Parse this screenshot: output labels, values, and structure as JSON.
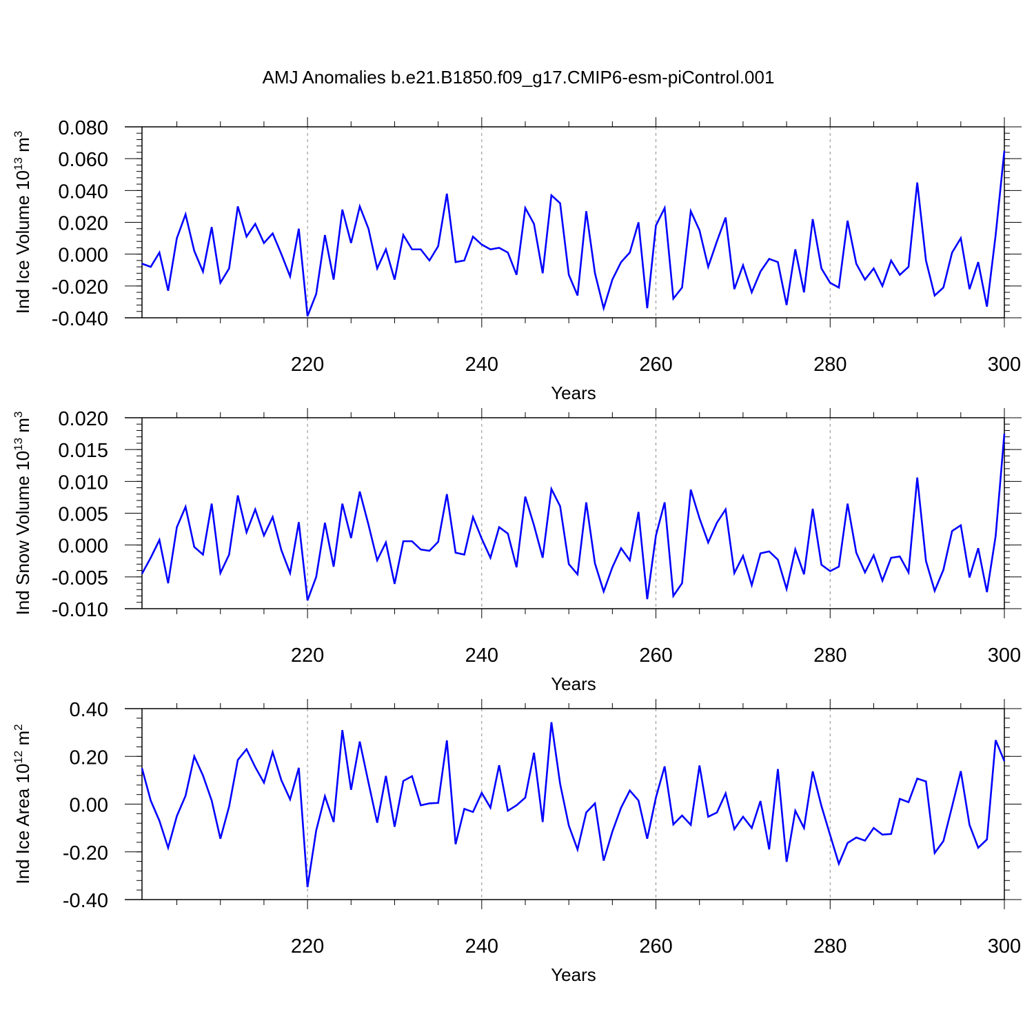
{
  "title": "AMJ Anomalies b.e21.B1850.f09_g17.CMIP6-esm-piControl.001",
  "colors": {
    "series": "#0000ff",
    "axis": "#000000",
    "grid": "#888888"
  },
  "chart_data": [
    {
      "type": "line",
      "ylabel": {
        "text": "Ind Ice Volume 10",
        "sup": "13",
        "unit": " m",
        "unitsup": "3"
      },
      "xlabel": "Years",
      "xlim": [
        201,
        300
      ],
      "ylim": [
        -0.04,
        0.08
      ],
      "ytick_values": [
        -0.04,
        -0.02,
        0.0,
        0.02,
        0.04,
        0.06,
        0.08
      ],
      "ytick_labels": [
        "-0.040",
        "-0.020",
        "0.000",
        "0.020",
        "0.040",
        "0.060",
        "0.080"
      ],
      "xtick_values": [
        220,
        240,
        260,
        280,
        300
      ],
      "xtick_labels": [
        "220",
        "240",
        "260",
        "280",
        "300"
      ],
      "grid_x": [
        220,
        240,
        260,
        280
      ],
      "series": [
        {
          "name": "Ind Ice Volume",
          "x_start": 201,
          "values": [
            -0.006,
            -0.008,
            0.001,
            -0.023,
            0.01,
            0.025,
            0.002,
            -0.011,
            0.017,
            -0.018,
            -0.009,
            0.03,
            0.011,
            0.019,
            0.007,
            0.013,
            0.0,
            -0.014,
            0.016,
            -0.039,
            -0.025,
            0.012,
            -0.016,
            0.028,
            0.007,
            0.03,
            0.016,
            -0.009,
            0.003,
            -0.016,
            0.012,
            0.003,
            0.003,
            -0.004,
            0.005,
            0.038,
            -0.005,
            -0.004,
            0.011,
            0.006,
            0.003,
            0.004,
            0.001,
            -0.013,
            0.029,
            0.019,
            -0.012,
            0.037,
            0.032,
            -0.013,
            -0.026,
            0.027,
            -0.012,
            -0.034,
            -0.016,
            -0.005,
            0.001,
            0.02,
            -0.034,
            0.018,
            0.029,
            -0.028,
            -0.021,
            0.027,
            0.015,
            -0.008,
            0.008,
            0.023,
            -0.022,
            -0.007,
            -0.024,
            -0.011,
            -0.003,
            -0.005,
            -0.032,
            0.003,
            -0.024,
            0.022,
            -0.009,
            -0.018,
            -0.021,
            0.021,
            -0.006,
            -0.016,
            -0.009,
            -0.02,
            -0.004,
            -0.013,
            -0.008,
            0.045,
            -0.004,
            -0.026,
            -0.021,
            0.001,
            0.01,
            -0.022,
            -0.005,
            -0.033,
            0.012,
            0.065
          ]
        }
      ]
    },
    {
      "type": "line",
      "ylabel": {
        "text": "Ind Snow Volume 10",
        "sup": "13",
        "unit": " m",
        "unitsup": "3"
      },
      "xlabel": "Years",
      "xlim": [
        201,
        300
      ],
      "ylim": [
        -0.01,
        0.02
      ],
      "ytick_values": [
        -0.01,
        -0.005,
        0.0,
        0.005,
        0.01,
        0.015,
        0.02
      ],
      "ytick_labels": [
        "-0.010",
        "-0.005",
        "0.000",
        "0.005",
        "0.010",
        "0.015",
        "0.020"
      ],
      "xtick_values": [
        220,
        240,
        260,
        280,
        300
      ],
      "xtick_labels": [
        "220",
        "240",
        "260",
        "280",
        "300"
      ],
      "grid_x": [
        220,
        240,
        260,
        280
      ],
      "series": [
        {
          "name": "Ind Snow Volume",
          "x_start": 201,
          "values": [
            -0.0045,
            -0.002,
            0.0008,
            -0.006,
            0.0028,
            0.006,
            -0.0003,
            -0.0015,
            0.0065,
            -0.0044,
            -0.0015,
            0.0078,
            0.002,
            0.0056,
            0.0015,
            0.0044,
            -0.0008,
            -0.0044,
            0.0036,
            -0.0087,
            -0.005,
            0.0035,
            -0.0034,
            0.0065,
            0.0011,
            0.0084,
            0.0032,
            -0.0024,
            0.0004,
            -0.0061,
            0.0006,
            0.0006,
            -0.0007,
            -0.0009,
            0.0005,
            0.008,
            -0.0012,
            -0.0015,
            0.0044,
            0.001,
            -0.002,
            0.0028,
            0.0018,
            -0.0035,
            0.0076,
            0.0031,
            -0.002,
            0.0088,
            0.0061,
            -0.003,
            -0.0046,
            0.0067,
            -0.0029,
            -0.0073,
            -0.0035,
            -0.0005,
            -0.0024,
            0.0052,
            -0.0085,
            0.0015,
            0.0067,
            -0.008,
            -0.006,
            0.0087,
            0.0042,
            0.0004,
            0.0035,
            0.0056,
            -0.0044,
            -0.0017,
            -0.0063,
            -0.0013,
            -0.001,
            -0.0023,
            -0.0069,
            -0.0007,
            -0.0046,
            0.0057,
            -0.0031,
            -0.0041,
            -0.0034,
            0.0065,
            -0.0012,
            -0.0043,
            -0.0016,
            -0.0056,
            -0.002,
            -0.0018,
            -0.0043,
            0.0106,
            -0.0025,
            -0.0072,
            -0.0039,
            0.0022,
            0.0031,
            -0.0051,
            -0.0005,
            -0.0074,
            0.0014,
            0.0175
          ]
        }
      ]
    },
    {
      "type": "line",
      "ylabel": {
        "text": "Ind Ice Area 10",
        "sup": "12",
        "unit": " m",
        "unitsup": "2"
      },
      "xlabel": "Years",
      "xlim": [
        201,
        300
      ],
      "ylim": [
        -0.4,
        0.4
      ],
      "ytick_values": [
        -0.4,
        -0.2,
        0.0,
        0.2,
        0.4
      ],
      "ytick_labels": [
        "-0.40",
        "-0.20",
        "0.00",
        "0.20",
        "0.40"
      ],
      "xtick_values": [
        220,
        240,
        260,
        280,
        300
      ],
      "xtick_labels": [
        "220",
        "240",
        "260",
        "280",
        "300"
      ],
      "grid_x": [
        220,
        240,
        260,
        280
      ],
      "series": [
        {
          "name": "Ind Ice Area",
          "x_start": 201,
          "values": [
            0.15,
            0.015,
            -0.07,
            -0.183,
            -0.05,
            0.035,
            0.2,
            0.12,
            0.015,
            -0.145,
            -0.01,
            0.185,
            0.23,
            0.155,
            0.09,
            0.218,
            0.1,
            0.02,
            0.152,
            -0.348,
            -0.11,
            0.033,
            -0.075,
            0.31,
            0.06,
            0.262,
            0.09,
            -0.078,
            0.118,
            -0.095,
            0.097,
            0.117,
            -0.005,
            0.003,
            0.005,
            0.267,
            -0.168,
            -0.02,
            -0.033,
            0.047,
            -0.015,
            0.163,
            -0.028,
            -0.005,
            0.027,
            0.215,
            -0.075,
            0.343,
            0.085,
            -0.09,
            -0.19,
            -0.035,
            0.003,
            -0.237,
            -0.115,
            -0.015,
            0.057,
            0.015,
            -0.145,
            0.028,
            0.158,
            -0.085,
            -0.048,
            -0.087,
            0.162,
            -0.053,
            -0.035,
            0.045,
            -0.105,
            -0.053,
            -0.1,
            0.013,
            -0.19,
            0.147,
            -0.242,
            -0.028,
            -0.1,
            0.137,
            -0.008,
            -0.13,
            -0.25,
            -0.163,
            -0.14,
            -0.153,
            -0.1,
            -0.128,
            -0.125,
            0.022,
            0.008,
            0.107,
            0.095,
            -0.205,
            -0.155,
            -0.01,
            0.138,
            -0.087,
            -0.183,
            -0.148,
            0.268,
            0.18
          ]
        }
      ]
    }
  ]
}
